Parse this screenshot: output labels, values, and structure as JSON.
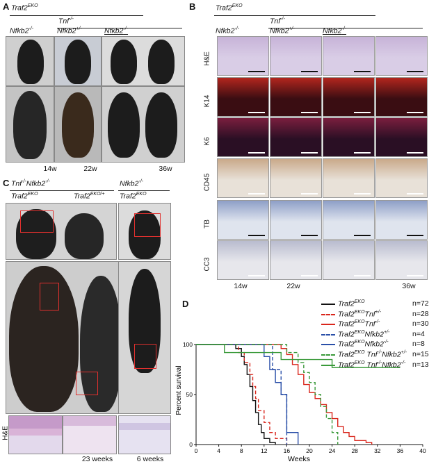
{
  "panel_a": {
    "letter": "A",
    "top_group": "Traf2",
    "top_group_sup": "EKO",
    "sub_group": "Tnf",
    "sub_group_sup": "-/-",
    "col1": "Nfkb2",
    "col1_sup": "-/-",
    "col2": "Nfkb2",
    "col2_sup": "+/-",
    "col3": "Nfkb2",
    "col3_sup": "-/-",
    "ages": [
      "14w",
      "22w",
      "36w"
    ]
  },
  "panel_b": {
    "letter": "B",
    "top_group": "Traf2",
    "top_group_sup": "EKO",
    "sub_group": "Tnf",
    "sub_group_sup": "-/-",
    "col1": "Nfkb2",
    "col1_sup": "-/-",
    "col2": "Nfkb2",
    "col2_sup": "+/-",
    "col3": "Nfkb2",
    "col3_sup": "-/-",
    "rows": [
      "H&E",
      "K14",
      "K6",
      "CD45",
      "TB",
      "CC3"
    ],
    "ages": [
      "14w",
      "22w",
      "36w"
    ]
  },
  "panel_c": {
    "letter": "C",
    "group1": "Tnf",
    "group1_sup": "-/-",
    "group1b": "Nfkb2",
    "group1b_sup": "-/-",
    "left_label": "Traf2",
    "left_label_sup": "EKO",
    "mid_label": "Traf2",
    "mid_label_sup": "EKO/+",
    "group2": "Nfkb2",
    "group2_sup": "-/-",
    "right_label": "Traf2",
    "right_label_sup": "EKO",
    "he_label": "H&E",
    "age_left": "23 weeks",
    "age_right": "6 weeks"
  },
  "panel_d": {
    "letter": "D",
    "ylabel": "Percent survival",
    "xlabel": "Weeks",
    "legend": [
      {
        "base": "Traf2",
        "sup1": "EKO",
        "rest": "",
        "sup2": "",
        "rest2": "",
        "sup3": "",
        "n": "n=72",
        "color": "#111111",
        "dash": "solid"
      },
      {
        "base": "Traf2",
        "sup1": "EKO",
        "rest": "Tnf",
        "sup2": "+/-",
        "rest2": "",
        "sup3": "",
        "n": "n=28",
        "color": "#d9261c",
        "dash": "dashed"
      },
      {
        "base": "Traf2",
        "sup1": "EKO",
        "rest": "Tnf",
        "sup2": "-/-",
        "rest2": "",
        "sup3": "",
        "n": "n=30",
        "color": "#d9261c",
        "dash": "solid"
      },
      {
        "base": "Traf2",
        "sup1": "EKO",
        "rest": "Nfkb2",
        "sup2": "+/-",
        "rest2": "",
        "sup3": "",
        "n": "n=4",
        "color": "#2a4fa8",
        "dash": "dashed"
      },
      {
        "base": "Traf2",
        "sup1": "EKO",
        "rest": "Nfkb2",
        "sup2": "-/-",
        "rest2": "",
        "sup3": "",
        "n": "n=8",
        "color": "#2a4fa8",
        "dash": "solid"
      },
      {
        "base": "Traf2",
        "sup1": "EKO",
        "rest": " Tnf",
        "sup2": "-/-",
        "rest2": "Nfkb2",
        "sup3": "+/-",
        "n": "n=15",
        "color": "#3a9a3a",
        "dash": "dashed"
      },
      {
        "base": "Traf2",
        "sup1": "EKO",
        "rest": " Tnf",
        "sup2": "-/-",
        "rest2": "Nfkb2",
        "sup3": "-/-",
        "n": "n=13",
        "color": "#3a9a3a",
        "dash": "solid"
      }
    ]
  },
  "chart_data": {
    "type": "line",
    "title": "",
    "xlabel": "Weeks",
    "ylabel": "Percent survival",
    "xlim": [
      0,
      40
    ],
    "ylim": [
      0,
      100
    ],
    "xticks": [
      0,
      4,
      8,
      12,
      16,
      20,
      24,
      28,
      32,
      36,
      40
    ],
    "yticks": [
      0,
      50,
      100
    ],
    "series": [
      {
        "name": "Traf2 EKO",
        "color": "#111111",
        "dash": "solid",
        "x": [
          0,
          6,
          7,
          8,
          8.5,
          9,
          9.5,
          10,
          10.5,
          11,
          11.5,
          12,
          13,
          14
        ],
        "y": [
          100,
          100,
          96,
          88,
          80,
          70,
          58,
          44,
          32,
          20,
          12,
          6,
          2,
          0
        ]
      },
      {
        "name": "Traf2 EKO Tnf +/-",
        "color": "#d9261c",
        "dash": "dashed",
        "x": [
          0,
          6.5,
          7.5,
          8.5,
          9.5,
          10,
          10.5,
          11,
          12,
          13,
          14,
          16
        ],
        "y": [
          100,
          100,
          92,
          82,
          70,
          58,
          46,
          34,
          22,
          12,
          6,
          0
        ]
      },
      {
        "name": "Traf2 EKO Tnf -/-",
        "color": "#d9261c",
        "dash": "solid",
        "x": [
          0,
          14,
          15,
          16,
          17,
          18,
          19,
          20,
          21,
          22,
          23,
          24,
          25,
          26,
          27,
          28,
          30,
          31
        ],
        "y": [
          100,
          100,
          96,
          90,
          80,
          70,
          60,
          52,
          46,
          40,
          32,
          26,
          18,
          12,
          8,
          4,
          2,
          0
        ]
      },
      {
        "name": "Traf2 EKO Nfkb2 +/-",
        "color": "#2a4fa8",
        "dash": "dashed",
        "x": [
          0,
          12,
          13.5,
          15,
          16
        ],
        "y": [
          100,
          100,
          75,
          50,
          0
        ]
      },
      {
        "name": "Traf2 EKO Nfkb2 -/-",
        "color": "#2a4fa8",
        "dash": "solid",
        "x": [
          0,
          10,
          12,
          13,
          14,
          15,
          16,
          18
        ],
        "y": [
          100,
          100,
          88,
          75,
          62,
          50,
          12,
          0
        ]
      },
      {
        "name": "Traf2 EKO Tnf -/- Nfkb2 +/-",
        "color": "#3a9a3a",
        "dash": "dashed",
        "x": [
          0,
          15,
          16,
          18,
          19,
          20,
          21,
          22,
          23,
          24,
          25
        ],
        "y": [
          100,
          100,
          92,
          82,
          72,
          62,
          50,
          38,
          26,
          12,
          0
        ]
      },
      {
        "name": "Traf2 EKO Tnf -/- Nfkb2 -/-",
        "color": "#3a9a3a",
        "dash": "solid",
        "x": [
          0,
          4,
          5,
          6,
          8,
          13,
          15,
          24,
          36
        ],
        "y": [
          100,
          100,
          92,
          92,
          92,
          92,
          85,
          77,
          77
        ]
      }
    ]
  }
}
